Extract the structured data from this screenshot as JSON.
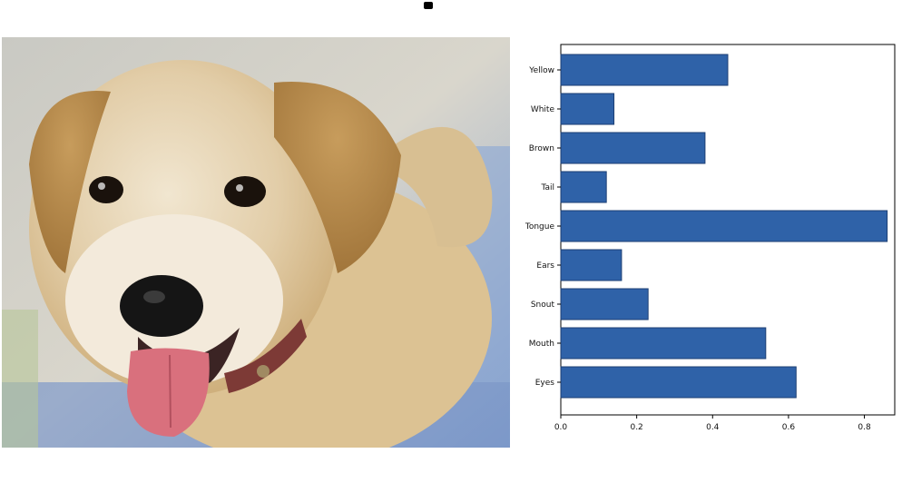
{
  "photo": {
    "subject": "golden retriever puppy with tongue out"
  },
  "chart_data": {
    "type": "bar",
    "orientation": "horizontal",
    "title": "",
    "xlabel": "",
    "ylabel": "",
    "categories": [
      "Yellow",
      "White",
      "Brown",
      "Tail",
      "Tongue",
      "Ears",
      "Snout",
      "Mouth",
      "Eyes"
    ],
    "values": [
      0.44,
      0.14,
      0.38,
      0.12,
      0.86,
      0.16,
      0.23,
      0.54,
      0.62
    ],
    "xlim": [
      0,
      0.88
    ],
    "xticks": [
      "0.0",
      "0.2",
      "0.4",
      "0.6",
      "0.8"
    ],
    "bar_color": "#2f62a8",
    "grid": false,
    "legend": "none"
  }
}
